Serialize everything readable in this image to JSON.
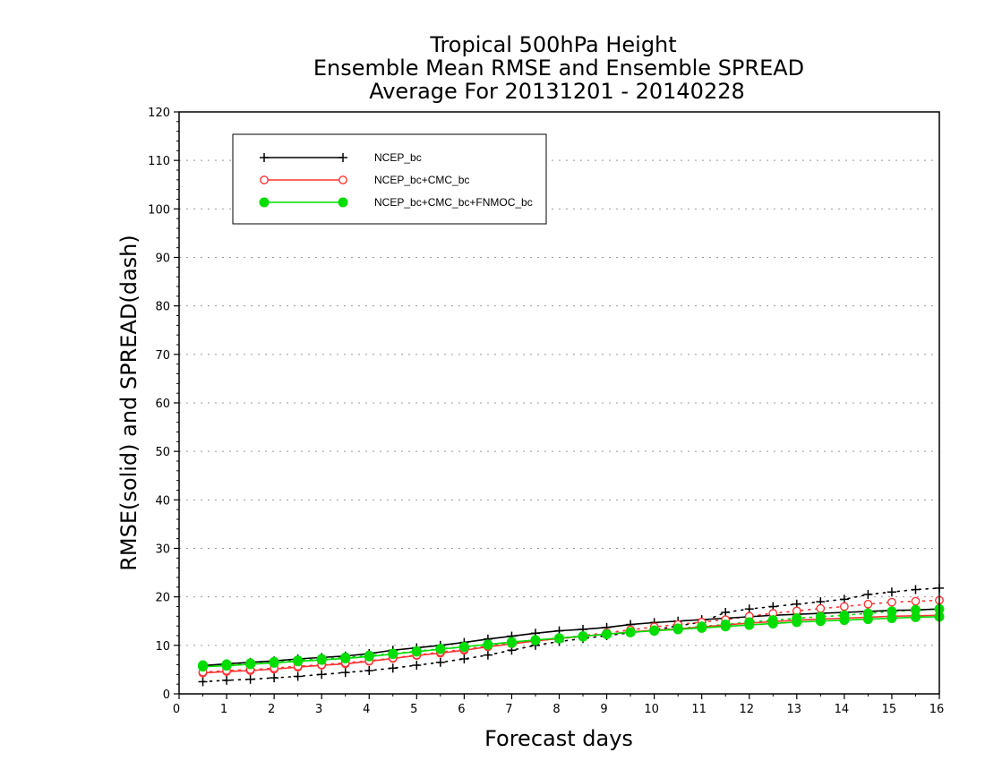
{
  "chart_data": {
    "type": "line",
    "title_lines": [
      "Tropical 500hPa Height",
      "Ensemble Mean RMSE and Ensemble SPREAD",
      "Average For 20131201 - 20140228"
    ],
    "xlabel": "Forecast days",
    "ylabel": "RMSE(solid) and SPREAD(dash)",
    "xlim": [
      0,
      16
    ],
    "ylim": [
      0,
      120
    ],
    "x_ticks": [
      "0",
      "1",
      "2",
      "3",
      "4",
      "5",
      "6",
      "7",
      "8",
      "9",
      "10",
      "11",
      "12",
      "13",
      "14",
      "15",
      "16"
    ],
    "y_ticks": [
      "0",
      "10",
      "20",
      "30",
      "40",
      "50",
      "60",
      "70",
      "80",
      "90",
      "100",
      "110",
      "120"
    ],
    "grid": "horizontal dotted",
    "legend_position": "top-left",
    "x": [
      0.5,
      1,
      1.5,
      2,
      2.5,
      3,
      3.5,
      4,
      4.5,
      5,
      5.5,
      6,
      6.5,
      7,
      7.5,
      8,
      8.5,
      9,
      9.5,
      10,
      10.5,
      11,
      11.5,
      12,
      12.5,
      13,
      13.5,
      14,
      14.5,
      15,
      15.5,
      16
    ],
    "series": [
      {
        "name": "NCEP_bc",
        "color": "#000000",
        "marker": "plus",
        "rmse": [
          5.8,
          6.2,
          6.5,
          6.8,
          7.2,
          7.5,
          7.8,
          8.3,
          9.0,
          9.5,
          10.0,
          10.6,
          11.3,
          11.9,
          12.5,
          13.0,
          13.3,
          13.7,
          14.3,
          14.7,
          15.0,
          15.3,
          15.6,
          15.9,
          16.2,
          16.4,
          16.6,
          16.8,
          17.0,
          17.2,
          17.3,
          17.5
        ],
        "spread": [
          2.5,
          2.8,
          3.0,
          3.3,
          3.6,
          4.0,
          4.4,
          4.8,
          5.3,
          5.9,
          6.5,
          7.2,
          8.0,
          9.0,
          10.0,
          10.8,
          11.4,
          12.0,
          12.6,
          13.2,
          14.0,
          14.8,
          16.8,
          17.5,
          18.0,
          18.5,
          19.0,
          19.5,
          20.5,
          21.0,
          21.5,
          21.8
        ]
      },
      {
        "name": "NCEP_bc+CMC_bc",
        "color": "#ff3333",
        "marker": "open-circle",
        "rmse": [
          4.3,
          4.6,
          4.8,
          5.1,
          5.5,
          5.9,
          6.2,
          6.7,
          7.3,
          7.9,
          8.4,
          9.0,
          9.7,
          10.3,
          10.9,
          11.4,
          11.9,
          12.3,
          12.8,
          13.1,
          13.4,
          13.8,
          14.2,
          14.6,
          14.9,
          15.2,
          15.4,
          15.6,
          15.8,
          16.0,
          16.1,
          16.2
        ],
        "spread": [
          4.5,
          4.8,
          5.0,
          5.3,
          5.7,
          6.0,
          6.4,
          6.8,
          7.4,
          8.0,
          8.6,
          9.2,
          9.8,
          10.4,
          11.0,
          11.5,
          12.0,
          12.6,
          13.2,
          13.8,
          14.3,
          14.8,
          15.3,
          16.0,
          16.6,
          17.1,
          17.6,
          18.0,
          18.5,
          18.9,
          19.1,
          19.3
        ]
      },
      {
        "name": "NCEP_bc+CMC_bc+FNMOC_bc",
        "color": "#00dd00",
        "marker": "filled-circle",
        "rmse": [
          5.6,
          5.8,
          6.1,
          6.4,
          6.7,
          7.0,
          7.3,
          7.7,
          8.2,
          8.7,
          9.2,
          9.7,
          10.2,
          10.7,
          11.1,
          11.5,
          11.9,
          12.3,
          12.7,
          13.0,
          13.3,
          13.6,
          13.9,
          14.2,
          14.5,
          14.8,
          15.0,
          15.2,
          15.4,
          15.6,
          15.8,
          15.9
        ],
        "spread": [
          5.9,
          6.1,
          6.3,
          6.6,
          6.9,
          7.2,
          7.5,
          7.9,
          8.3,
          8.8,
          9.3,
          9.7,
          10.1,
          10.5,
          11.0,
          11.4,
          11.8,
          12.3,
          12.7,
          13.1,
          13.5,
          13.9,
          14.3,
          14.8,
          15.2,
          15.6,
          15.9,
          16.2,
          16.6,
          17.0,
          17.3,
          17.5
        ]
      }
    ]
  }
}
